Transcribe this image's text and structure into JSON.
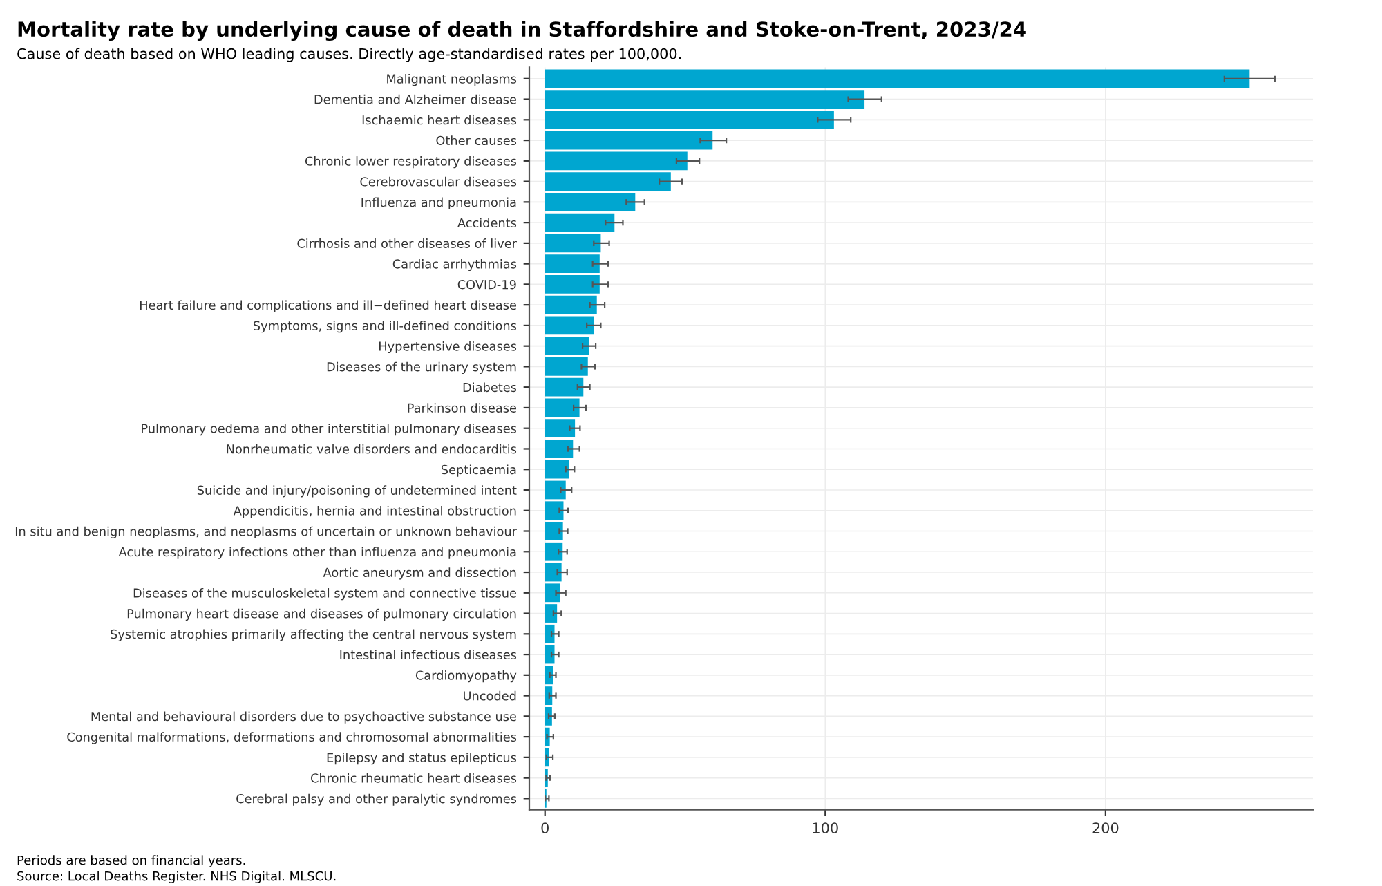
{
  "chart_data": {
    "type": "bar",
    "orientation": "horizontal",
    "title": "Mortality rate by underlying cause of death in Staffordshire and Stoke-on-Trent, 2023/24",
    "subtitle": "Cause of death based on WHO leading causes. Directly age-standardised rates per 100,000.",
    "categories": [
      "Malignant neoplasms",
      "Dementia and Alzheimer disease",
      "Ischaemic heart diseases",
      "Other causes",
      "Chronic lower respiratory diseases",
      "Cerebrovascular diseases",
      "Influenza and pneumonia",
      "Accidents",
      "Cirrhosis and other diseases of liver",
      "Cardiac arrhythmias",
      "COVID-19",
      "Heart failure and complications and ill−defined heart disease",
      "Symptoms, signs and ill-defined conditions",
      "Hypertensive diseases",
      "Diseases of the urinary system",
      "Diabetes",
      "Parkinson disease",
      "Pulmonary oedema and other interstitial pulmonary diseases",
      "Nonrheumatic valve disorders and endocarditis",
      "Septicaemia",
      "Suicide and injury/poisoning of undetermined intent",
      "Appendicitis, hernia and intestinal obstruction",
      "In situ and benign neoplasms, and neoplasms of uncertain or unknown behaviour",
      "Acute respiratory infections other than influenza and pneumonia",
      "Aortic aneurysm and dissection",
      "Diseases of the musculoskeletal system and connective tissue",
      "Pulmonary heart disease and diseases of pulmonary circulation",
      "Systemic atrophies primarily affecting the central nervous system",
      "Intestinal infectious diseases",
      "Cardiomyopathy",
      "Uncoded",
      "Mental and behavioural disorders due to psychoactive substance use",
      "Congenital malformations, deformations and chromosomal abnormalities",
      "Epilepsy and status epilepticus",
      "Chronic rheumatic heart diseases",
      "Cerebral palsy and other paralytic syndromes"
    ],
    "values": [
      251.4,
      114.0,
      103.1,
      59.8,
      50.8,
      44.9,
      32.2,
      24.8,
      19.9,
      19.5,
      19.5,
      18.5,
      17.4,
      15.7,
      15.3,
      13.7,
      12.3,
      10.7,
      10.0,
      8.7,
      7.4,
      6.6,
      6.4,
      6.3,
      5.9,
      5.4,
      4.3,
      3.4,
      3.4,
      2.8,
      2.6,
      2.5,
      1.7,
      1.5,
      1.0,
      0.5
    ],
    "errors": [
      [
        242.4,
        260.4
      ],
      [
        108.2,
        120.1
      ],
      [
        97.3,
        109.1
      ],
      [
        55.4,
        64.7
      ],
      [
        46.9,
        55.1
      ],
      [
        40.8,
        48.9
      ],
      [
        29.0,
        35.5
      ],
      [
        21.6,
        27.8
      ],
      [
        17.4,
        22.9
      ],
      [
        17.0,
        22.5
      ],
      [
        17.0,
        22.5
      ],
      [
        16.0,
        21.3
      ],
      [
        14.9,
        19.9
      ],
      [
        13.4,
        18.1
      ],
      [
        13.0,
        17.8
      ],
      [
        11.6,
        16.0
      ],
      [
        10.2,
        14.6
      ],
      [
        8.8,
        12.5
      ],
      [
        8.2,
        12.3
      ],
      [
        7.4,
        10.5
      ],
      [
        5.6,
        9.5
      ],
      [
        5.1,
        8.2
      ],
      [
        5.1,
        8.1
      ],
      [
        4.8,
        7.9
      ],
      [
        4.4,
        7.9
      ],
      [
        3.9,
        7.4
      ],
      [
        3.0,
        5.8
      ],
      [
        2.3,
        4.9
      ],
      [
        2.3,
        4.9
      ],
      [
        1.7,
        3.9
      ],
      [
        1.5,
        3.9
      ],
      [
        1.3,
        3.5
      ],
      [
        0.7,
        3.0
      ],
      [
        0.5,
        2.8
      ],
      [
        0.4,
        1.8
      ],
      [
        0.1,
        1.4
      ]
    ],
    "color": "#00a6d0",
    "xlim": [
      -5.6,
      274
    ],
    "xticks": [
      0,
      100,
      200
    ],
    "grid": true,
    "annotations": [
      "Periods are based on financial years.",
      "Source: Local Deaths Register. NHS Digital. MLSCU."
    ]
  }
}
